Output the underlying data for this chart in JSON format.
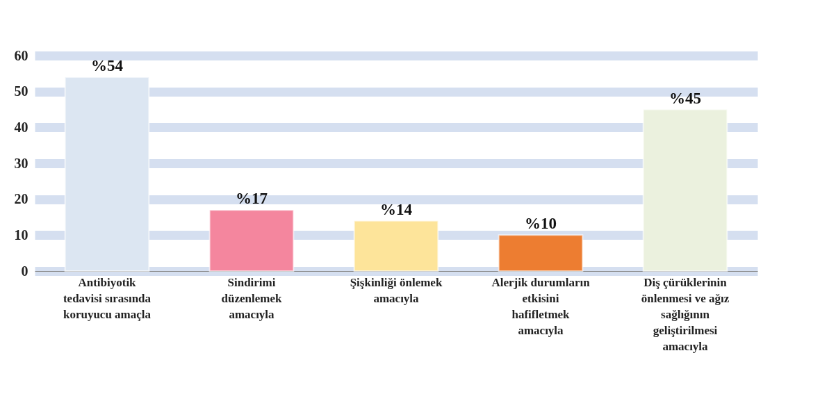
{
  "chart_data": {
    "type": "bar",
    "categories": [
      "Antibiyotik tedavisi sırasında koruyucu amaçla",
      "Sindirimi düzenlemek amacıyla",
      "Şişkinliği önlemek amacıyla",
      "Alerjik durumların etkisini hafifletmek amacıyla",
      "Diş çürüklerinin önlenmesi ve ağız sağlığının geliştirilmesi amacıyla"
    ],
    "values": [
      54,
      17,
      14,
      10,
      45
    ],
    "value_labels": [
      "%54",
      "%17",
      "%14",
      "%10",
      "%45"
    ],
    "colors": [
      "#dce6f2",
      "#f4869e",
      "#fde49a",
      "#ed7d31",
      "#ebf1de"
    ],
    "ylim": [
      0,
      60
    ],
    "yticks": [
      0,
      10,
      20,
      30,
      40,
      50,
      60
    ],
    "grid": "y",
    "legend": false
  }
}
